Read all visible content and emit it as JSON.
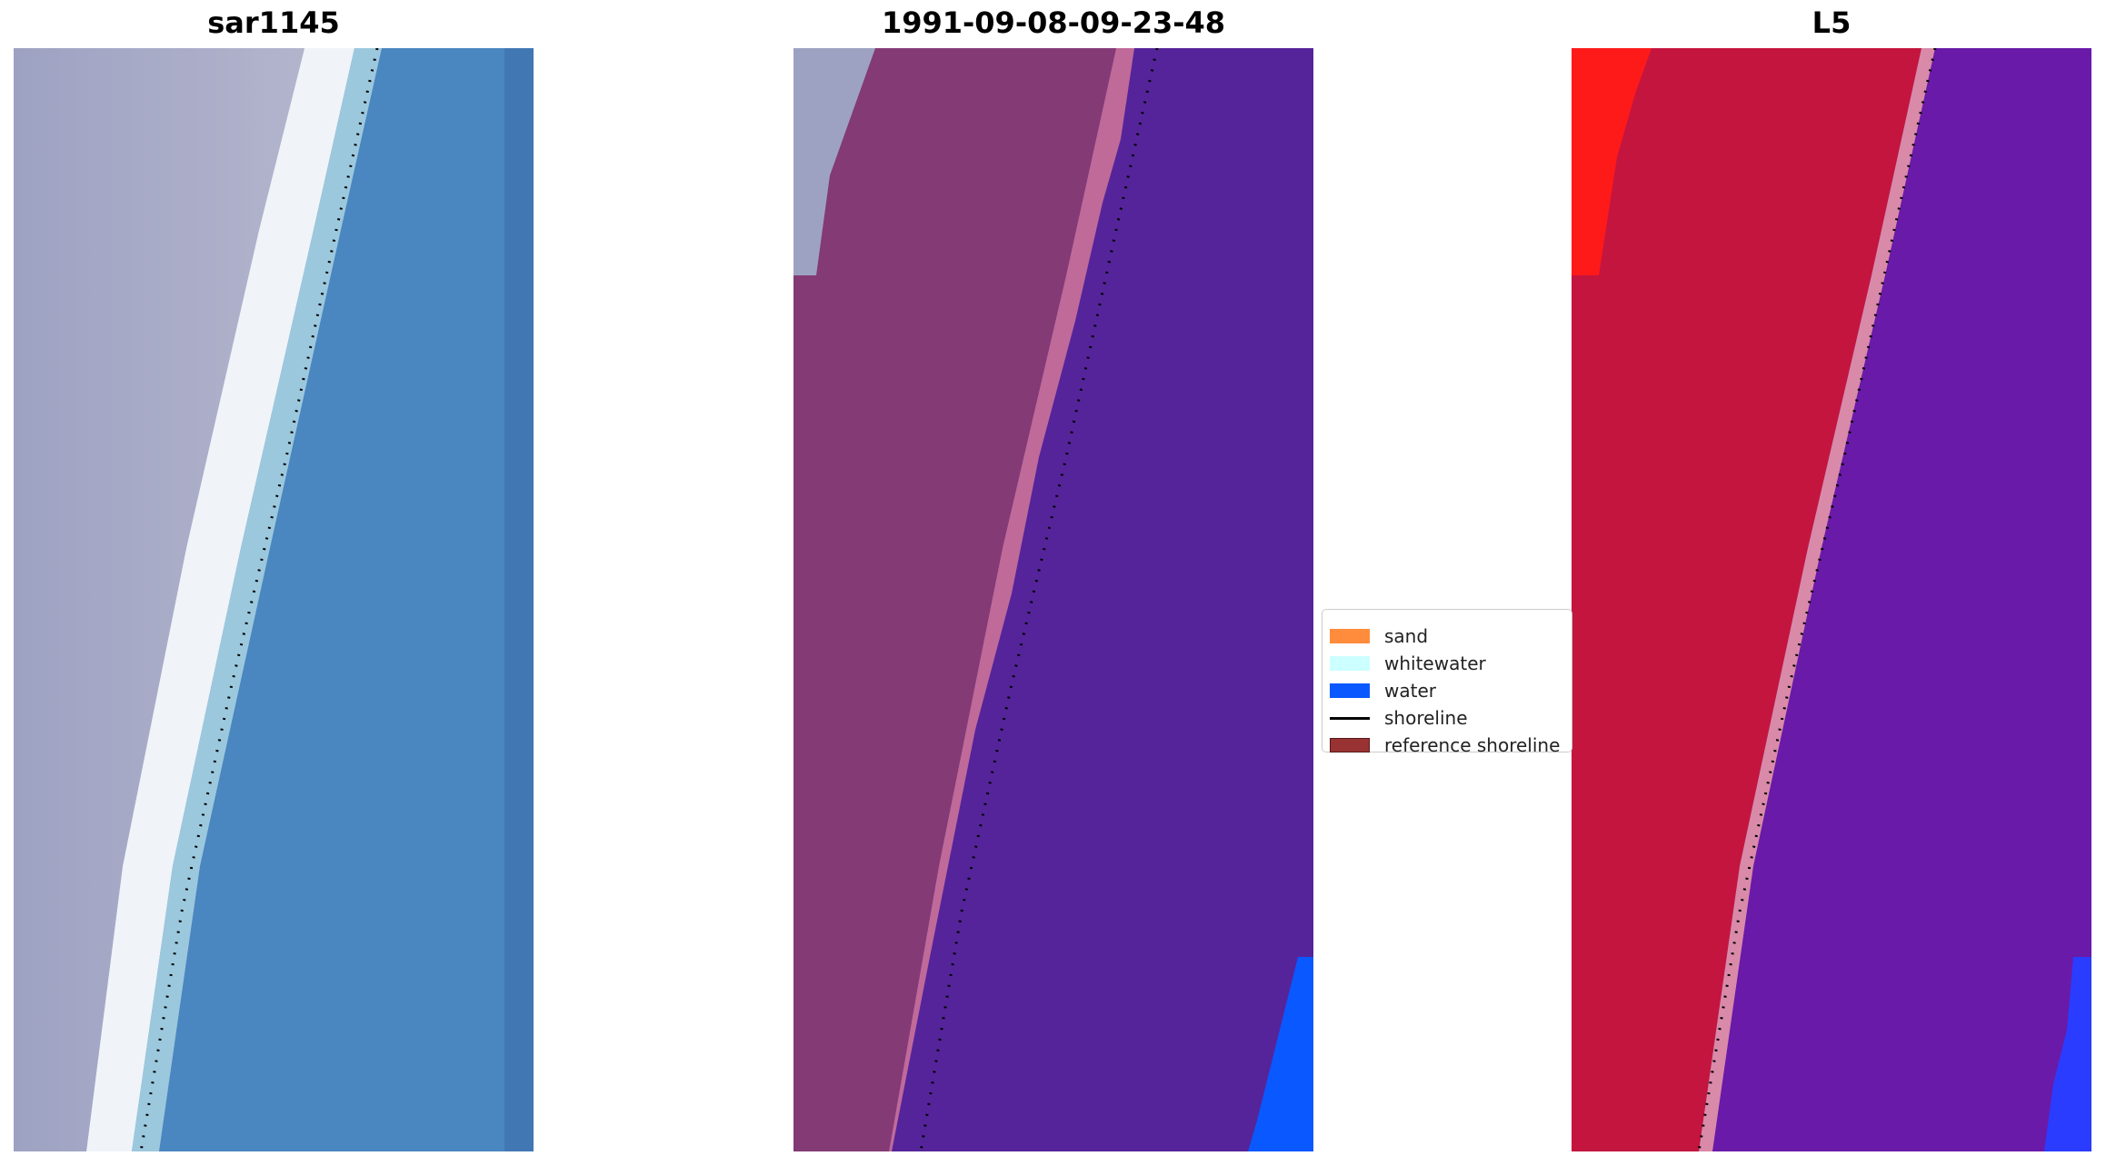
{
  "panels": [
    {
      "title": "sar1145"
    },
    {
      "title": "1991-09-08-09-23-48"
    },
    {
      "title": "L5"
    }
  ],
  "legend": {
    "items": [
      {
        "label": "sand",
        "kind": "patch",
        "color": "#ff8c3c"
      },
      {
        "label": "whitewater",
        "kind": "patch",
        "color": "#ccffff"
      },
      {
        "label": "water",
        "kind": "patch",
        "color": "#0a58ff"
      },
      {
        "label": "shoreline",
        "kind": "line",
        "color": "#000000"
      },
      {
        "label": "reference shoreline",
        "kind": "patch",
        "color": "#993333"
      }
    ]
  },
  "colors": {
    "rgb_sand": "#a7a9c6",
    "rgb_whitewater": "#f4f6fa",
    "rgb_water": "#4a88c0",
    "class_sand": "#833a75",
    "class_whitewater": "#c06a9a",
    "class_water": "#55249a",
    "class_water_blue": "#0a58ff",
    "index_land": "#c4153f",
    "index_land_bright": "#ff1a1a",
    "index_water": "#6a1aa8",
    "index_water_blue": "#2a3cff"
  }
}
